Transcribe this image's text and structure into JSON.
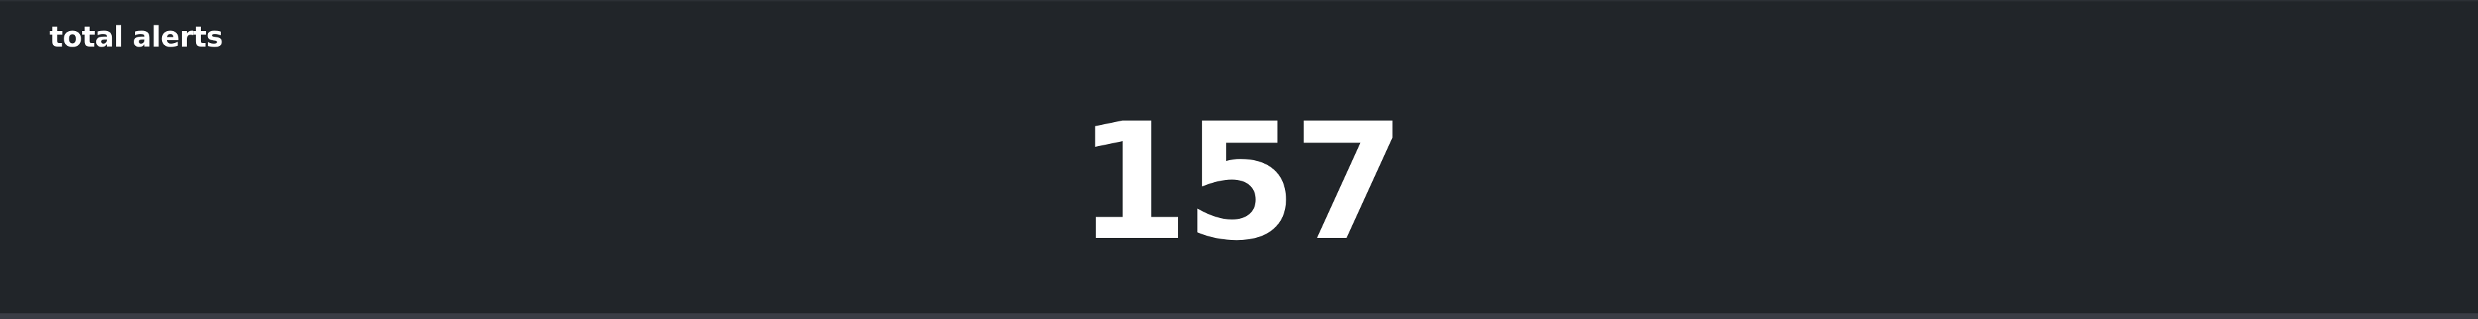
{
  "panel": {
    "title": "total alerts",
    "value": "157"
  },
  "colors": {
    "background": "#212529",
    "text": "#ffffff",
    "bottom_strip": "#3a3d45"
  }
}
